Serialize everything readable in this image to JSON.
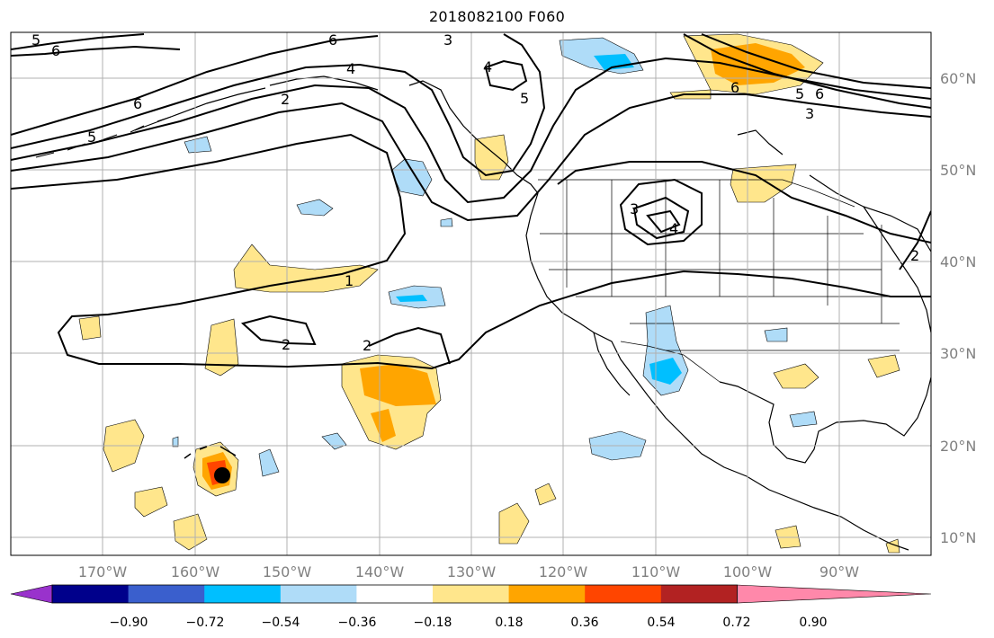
{
  "title": "2018082100 F060",
  "lon_labels": [
    "170°W",
    "160°W",
    "150°W",
    "140°W",
    "130°W",
    "120°W",
    "110°W",
    "100°W",
    "90°W"
  ],
  "lat_labels": [
    "60°N",
    "50°N",
    "40°N",
    "30°N",
    "20°N",
    "10°N"
  ],
  "colorbar": {
    "colors": [
      "#9932cc",
      "#00008b",
      "#3a5fcd",
      "#00bfff",
      "#afdcf8",
      "#ffffff",
      "#ffe68c",
      "#ffa500",
      "#ff4500",
      "#b22222",
      "#ff88aa"
    ],
    "tick_labels": [
      "−0.90",
      "−0.72",
      "−0.54",
      "−0.36",
      "−0.18",
      "0.18",
      "0.36",
      "0.54",
      "0.72",
      "0.90"
    ]
  },
  "contour_labels": [
    "5",
    "6",
    "6",
    "3",
    "4",
    "2",
    "6",
    "5",
    "4",
    "5",
    "6",
    "3",
    "6",
    "5",
    "3",
    "4",
    "1",
    "2",
    "2",
    "2"
  ],
  "colors": {
    "grid": "#b0b0b0",
    "frame": "#000000",
    "coast": "#000000",
    "hurricane": "#000000"
  }
}
